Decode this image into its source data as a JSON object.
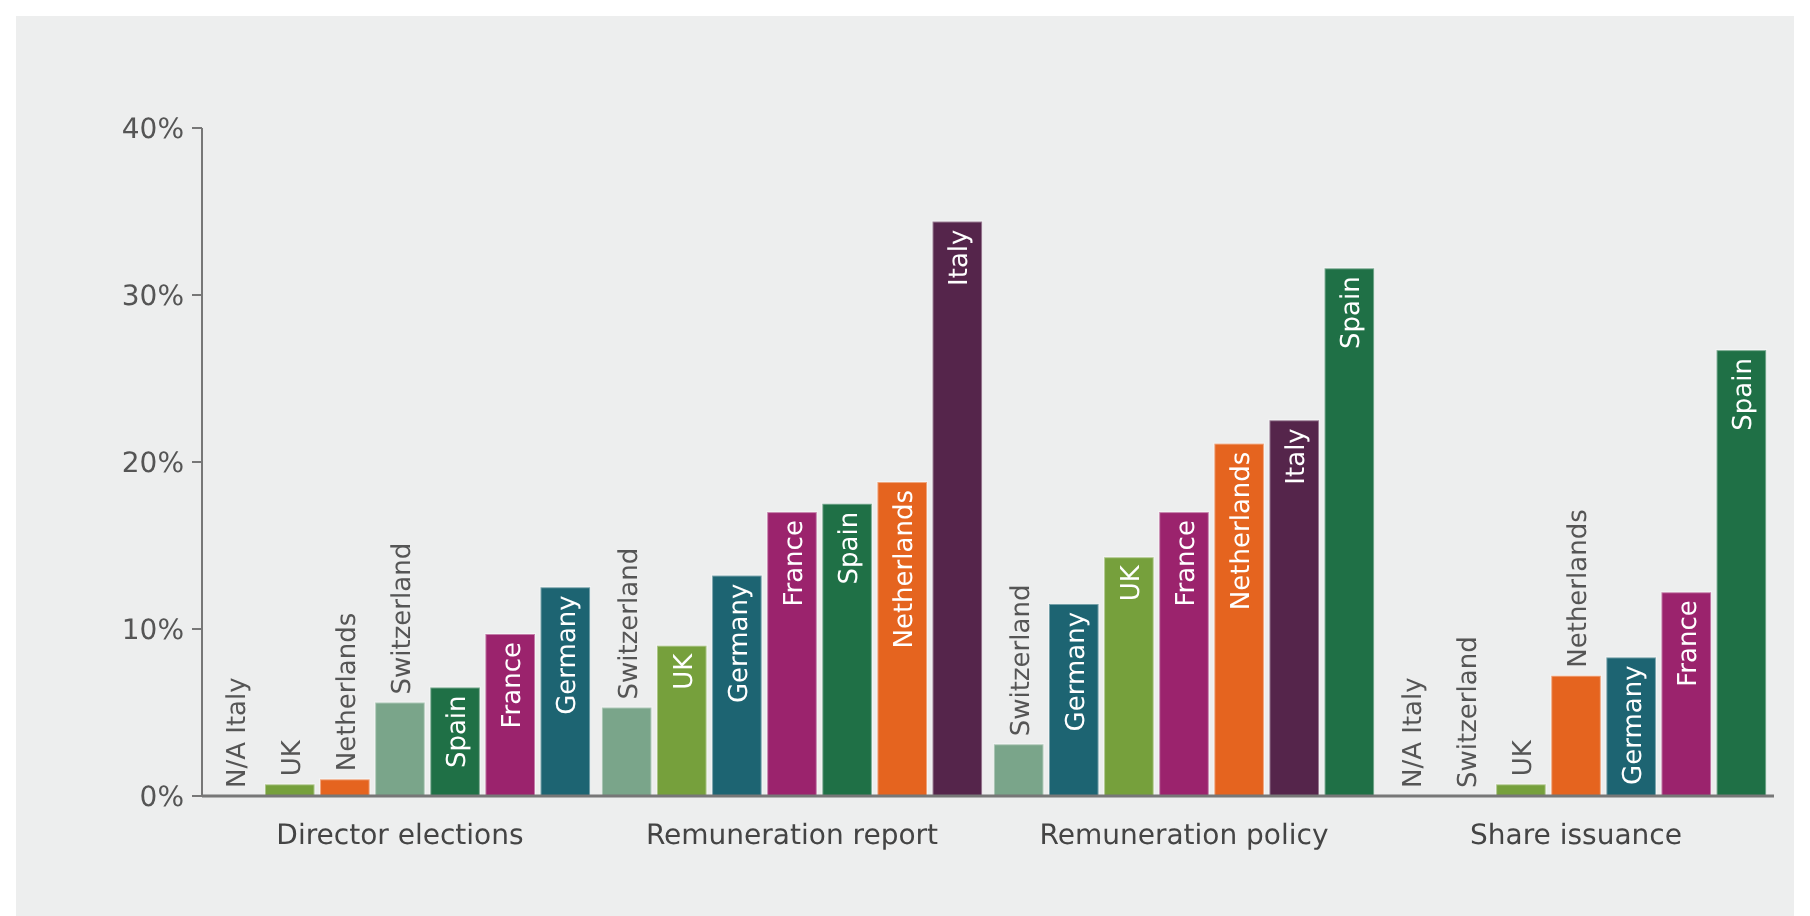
{
  "chart_data": {
    "type": "bar",
    "categories": [
      "Director elections",
      "Remuneration report",
      "Remuneration policy",
      "Share issuance"
    ],
    "ylim": [
      0,
      40
    ],
    "yticks": [
      {
        "value": 0,
        "label": "0%"
      },
      {
        "value": 10,
        "label": "10%"
      },
      {
        "value": 20,
        "label": "20%"
      },
      {
        "value": 30,
        "label": "30%"
      },
      {
        "value": 40,
        "label": "40%"
      }
    ],
    "grid": false,
    "series": [
      {
        "values": [
          null,
          5.3,
          3.1,
          null
        ],
        "colors": [
          "#7aa58a",
          "#7aa58a",
          "#7aa58a",
          "#7aa58a"
        ],
        "value_labels": [
          "N/A Italy",
          "Switzerland",
          "Switzerland",
          "N/A Italy"
        ]
      },
      {
        "values": [
          0.7,
          9.0,
          11.5,
          null
        ],
        "colors": [
          "#76a03c",
          "#76a03c",
          "#1d6472",
          "#7aa58a"
        ],
        "value_labels": [
          "UK",
          "UK",
          "Germany",
          "Switzerland"
        ]
      },
      {
        "values": [
          1.0,
          13.2,
          14.3,
          0.7
        ],
        "colors": [
          "#e5641f",
          "#1d6472",
          "#76a03c",
          "#76a03c"
        ],
        "value_labels": [
          "Netherlands",
          "Germany",
          "UK",
          "UK"
        ]
      },
      {
        "values": [
          5.6,
          17.0,
          17.0,
          7.2
        ],
        "colors": [
          "#7aa58a",
          "#9b236d",
          "#9b236d",
          "#e5641f"
        ],
        "value_labels": [
          "Switzerland",
          "France",
          "France",
          "Netherlands"
        ]
      },
      {
        "values": [
          6.5,
          17.5,
          21.1,
          8.3
        ],
        "colors": [
          "#1f7046",
          "#1f7046",
          "#e5641f",
          "#1d6472"
        ],
        "value_labels": [
          "Spain",
          "Spain",
          "Netherlands",
          "Germany"
        ]
      },
      {
        "values": [
          9.7,
          18.8,
          22.5,
          12.2
        ],
        "colors": [
          "#9b236d",
          "#e5641f",
          "#55254b",
          "#9b236d"
        ],
        "value_labels": [
          "France",
          "Netherlands",
          "Italy",
          "France"
        ]
      },
      {
        "values": [
          12.5,
          34.4,
          31.6,
          26.7
        ],
        "colors": [
          "#1d6472",
          "#55254b",
          "#1f7046",
          "#1f7046"
        ],
        "value_labels": [
          "Germany",
          "Italy",
          "Spain",
          "Spain"
        ]
      }
    ]
  }
}
